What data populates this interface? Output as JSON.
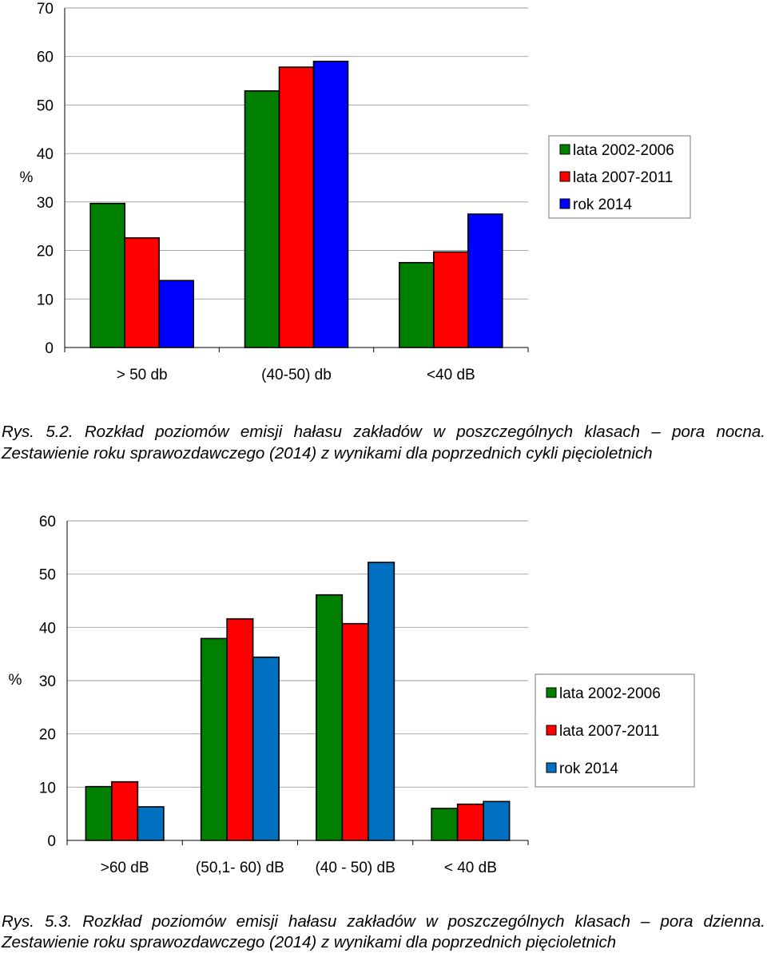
{
  "chart_data": [
    {
      "type": "bar",
      "title": "",
      "ylabel": "%",
      "xlabel": "",
      "ylim": [
        0,
        70
      ],
      "yticks": [
        0,
        10,
        20,
        30,
        40,
        50,
        60,
        70
      ],
      "grid": true,
      "legend_position": "right",
      "categories": [
        "> 50 db",
        "(40-50) db",
        "<40 dB"
      ],
      "series": [
        {
          "name": "lata 2002-2006",
          "color": "#008000",
          "values": [
            29.7,
            52.9,
            17.5
          ]
        },
        {
          "name": "lata 2007-2011",
          "color": "#ff0000",
          "values": [
            22.6,
            57.8,
            19.7
          ]
        },
        {
          "name": "rok 2014",
          "color": "#0000ff",
          "values": [
            13.8,
            59.0,
            27.5
          ]
        }
      ]
    },
    {
      "type": "bar",
      "title": "",
      "ylabel": "%",
      "xlabel": "",
      "ylim": [
        0,
        60
      ],
      "yticks": [
        0,
        10,
        20,
        30,
        40,
        50,
        60
      ],
      "grid": true,
      "legend_position": "right",
      "categories": [
        ">60 dB",
        "(50,1- 60) dB",
        "(40 - 50) dB",
        "< 40 dB"
      ],
      "series": [
        {
          "name": "lata 2002-2006",
          "color": "#008000",
          "values": [
            10.1,
            37.9,
            46.1,
            6.0
          ]
        },
        {
          "name": "lata 2007-2011",
          "color": "#ff0000",
          "values": [
            11.0,
            41.6,
            40.7,
            6.8
          ]
        },
        {
          "name": "rok 2014",
          "color": "#0070c0",
          "values": [
            6.3,
            34.4,
            52.2,
            7.3
          ]
        }
      ]
    }
  ],
  "captions": [
    "Rys. 5.2. Rozkład poziomów emisji hałasu zakładów w poszczególnych klasach – pora nocna. Zestawienie roku sprawozdawczego (2014) z wynikami dla poprzednich cykli pięcioletnich",
    "Rys. 5.3. Rozkład poziomów emisji hałasu zakładów w poszczególnych klasach – pora dzienna. Zestawienie roku sprawozdawczego (2014) z wynikami dla poprzednich pięcioletnich"
  ]
}
